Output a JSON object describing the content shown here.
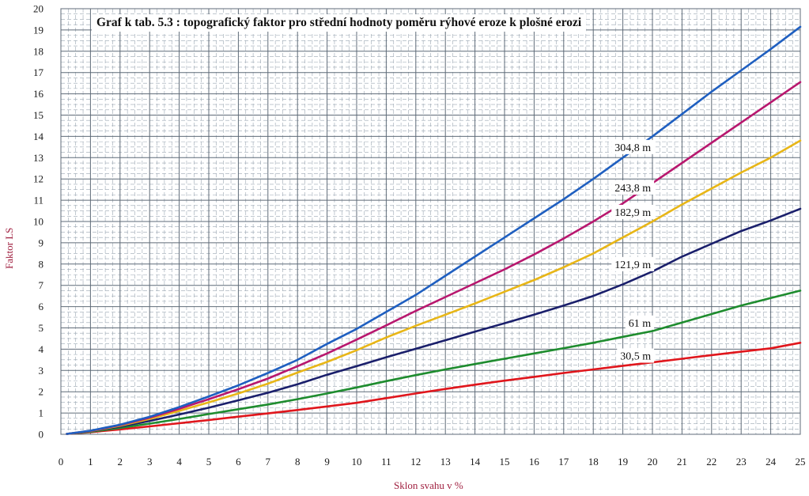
{
  "chart_data": {
    "type": "line",
    "title": "Graf k tab. 5.3 : topografický faktor pro střední hodnoty poměru rýhové eroze k plošné erozi",
    "xlabel": "Sklon svahu v %",
    "ylabel": "Faktor LS",
    "xlim": [
      0,
      25
    ],
    "ylim": [
      0,
      20
    ],
    "x_ticks": [
      0,
      1,
      2,
      3,
      4,
      5,
      6,
      7,
      8,
      9,
      10,
      11,
      12,
      13,
      14,
      15,
      16,
      17,
      18,
      19,
      20,
      21,
      22,
      23,
      24,
      25
    ],
    "y_ticks": [
      0,
      1,
      2,
      3,
      4,
      5,
      6,
      7,
      8,
      9,
      10,
      11,
      12,
      13,
      14,
      15,
      16,
      17,
      18,
      19,
      20
    ],
    "grid": true,
    "x": [
      0.2,
      1,
      2,
      3,
      4,
      5,
      6,
      7,
      8,
      9,
      10,
      11,
      12,
      13,
      14,
      15,
      16,
      17,
      18,
      19,
      20,
      21,
      22,
      23,
      24,
      25
    ],
    "series": [
      {
        "name": "30,5 m",
        "color": "#e0161c",
        "values": [
          0.02,
          0.1,
          0.23,
          0.37,
          0.52,
          0.67,
          0.83,
          0.98,
          1.14,
          1.31,
          1.48,
          1.7,
          1.92,
          2.13,
          2.33,
          2.52,
          2.7,
          2.88,
          3.05,
          3.22,
          3.38,
          3.55,
          3.72,
          3.88,
          4.04,
          4.3
        ]
      },
      {
        "name": "61 m",
        "color": "#1e8c2e",
        "values": [
          0.02,
          0.12,
          0.3,
          0.5,
          0.72,
          0.95,
          1.18,
          1.4,
          1.65,
          1.92,
          2.2,
          2.5,
          2.78,
          3.05,
          3.3,
          3.55,
          3.8,
          4.05,
          4.3,
          4.58,
          4.85,
          5.25,
          5.65,
          6.05,
          6.4,
          6.75
        ]
      },
      {
        "name": "121,9 m",
        "color": "#1a1f6b",
        "values": [
          0.02,
          0.14,
          0.36,
          0.63,
          0.93,
          1.25,
          1.6,
          1.95,
          2.35,
          2.8,
          3.2,
          3.62,
          4.02,
          4.42,
          4.82,
          5.22,
          5.62,
          6.05,
          6.5,
          7.05,
          7.65,
          8.35,
          8.95,
          9.55,
          10.05,
          10.6
        ]
      },
      {
        "name": "182,9 m",
        "color": "#e8b617",
        "values": [
          0.02,
          0.15,
          0.4,
          0.72,
          1.1,
          1.5,
          1.92,
          2.38,
          2.9,
          3.4,
          3.95,
          4.55,
          5.1,
          5.62,
          6.15,
          6.7,
          7.25,
          7.85,
          8.5,
          9.25,
          10.0,
          10.8,
          11.55,
          12.3,
          13.0,
          13.8
        ]
      },
      {
        "name": "243,8 m",
        "color": "#b8176e",
        "values": [
          0.02,
          0.16,
          0.43,
          0.78,
          1.2,
          1.65,
          2.12,
          2.62,
          3.2,
          3.8,
          4.45,
          5.12,
          5.8,
          6.45,
          7.1,
          7.75,
          8.45,
          9.2,
          10.0,
          10.85,
          11.8,
          12.75,
          13.7,
          14.65,
          15.6,
          16.55
        ]
      },
      {
        "name": "304,8 m",
        "color": "#1f5fc0",
        "values": [
          0.02,
          0.17,
          0.45,
          0.82,
          1.28,
          1.78,
          2.3,
          2.88,
          3.5,
          4.25,
          4.95,
          5.75,
          6.55,
          7.45,
          8.35,
          9.25,
          10.15,
          11.05,
          12.0,
          13.0,
          14.0,
          15.05,
          16.1,
          17.1,
          18.1,
          19.15
        ]
      }
    ],
    "annotations": [
      {
        "text": "304,8 m",
        "x": 19.95,
        "y": 13.35
      },
      {
        "text": "243,8 m",
        "x": 19.95,
        "y": 11.45
      },
      {
        "text": "182,9 m",
        "x": 19.95,
        "y": 10.3
      },
      {
        "text": "121,9 m",
        "x": 19.95,
        "y": 7.85
      },
      {
        "text": "61 m",
        "x": 19.95,
        "y": 5.1
      },
      {
        "text": "30,5 m",
        "x": 19.95,
        "y": 3.55
      }
    ]
  }
}
